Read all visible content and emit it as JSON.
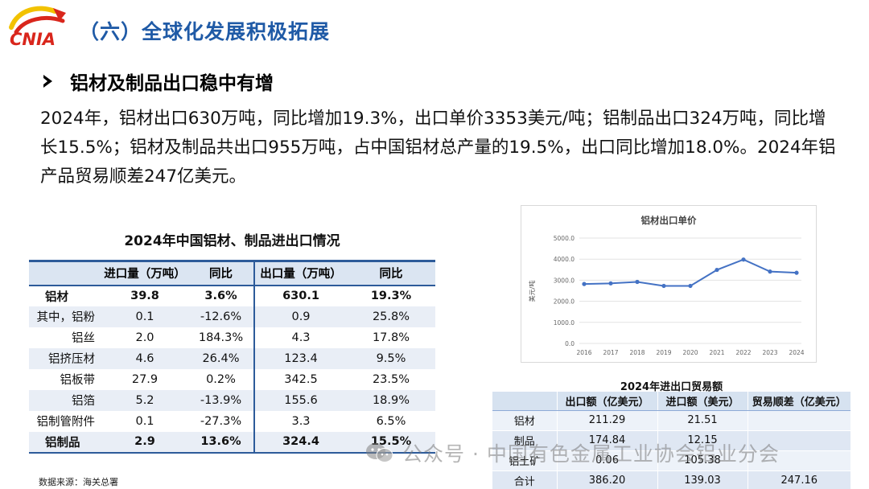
{
  "header": {
    "logo_text": "CNIA",
    "title": "（六）全球化发展积极拓展"
  },
  "section": {
    "subheading": "铝材及制品出口稳中有增",
    "paragraph": "2024年，铝材出口630万吨，同比增加19.3%，出口单价3353美元/吨；铝制品出口324万吨，同比增长15.5%；铝材及制品共出口955万吨，占中国铝材总产量的19.5%，出口同比增加18.0%。2024年铝产品贸易顺差247亿美元。"
  },
  "trade_table": {
    "title": "2024年中国铝材、制品进出口情况",
    "headers": [
      "",
      "进口量（万吨）",
      "同比",
      "出口量（万吨）",
      "同比"
    ],
    "rows": [
      {
        "name": "铝材",
        "import": "39.8",
        "import_yoy": "3.6%",
        "export": "630.1",
        "export_yoy": "19.3%"
      },
      {
        "name": "其中，铝粉",
        "import": "0.1",
        "import_yoy": "-12.6%",
        "export": "0.9",
        "export_yoy": "25.8%"
      },
      {
        "name": "铝丝",
        "import": "2.0",
        "import_yoy": "184.3%",
        "export": "4.3",
        "export_yoy": "17.8%"
      },
      {
        "name": "铝挤压材",
        "import": "4.6",
        "import_yoy": "26.4%",
        "export": "123.4",
        "export_yoy": "9.5%"
      },
      {
        "name": "铝板带",
        "import": "27.9",
        "import_yoy": "0.2%",
        "export": "342.5",
        "export_yoy": "23.5%"
      },
      {
        "name": "铝箔",
        "import": "5.2",
        "import_yoy": "-13.9%",
        "export": "155.6",
        "export_yoy": "18.9%"
      },
      {
        "name": "铝制管附件",
        "import": "0.1",
        "import_yoy": "-27.3%",
        "export": "3.3",
        "export_yoy": "6.5%"
      },
      {
        "name": "铝制品",
        "import": "2.9",
        "import_yoy": "13.6%",
        "export": "324.4",
        "export_yoy": "15.5%"
      }
    ],
    "source": "数据来源：海关总署"
  },
  "chart_data": {
    "type": "line",
    "title": "铝材出口单价",
    "ylabel": "美元/吨",
    "xlabel": "",
    "x": [
      "2016",
      "2017",
      "2018",
      "2019",
      "2020",
      "2021",
      "2022",
      "2023",
      "2024"
    ],
    "series": [
      {
        "values": [
          2820,
          2850,
          2920,
          2730,
          2730,
          3490,
          3980,
          3410,
          3353
        ]
      }
    ],
    "ylim": [
      0,
      5000
    ],
    "yticks": [
      "0.0",
      "1000.0",
      "2000.0",
      "3000.0",
      "4000.0",
      "5000.0"
    ],
    "grid": true,
    "legend": "none",
    "line_color": "#4472c4"
  },
  "balance_table": {
    "title": "2024年进出口贸易额",
    "headers": [
      "",
      "出口额（亿美元）",
      "进口额（美元）",
      "贸易顺差（亿美元）"
    ],
    "rows": [
      {
        "name": "铝材",
        "export": "211.29",
        "import": "21.51",
        "surplus": ""
      },
      {
        "name": "制品",
        "export": "174.84",
        "import": "12.15",
        "surplus": ""
      },
      {
        "name": "铝土矿",
        "export": "0.06",
        "import": "105.38",
        "surplus": ""
      },
      {
        "name": "合计",
        "export": "386.20",
        "import": "139.03",
        "surplus": "247.16"
      }
    ]
  },
  "watermark": {
    "text": "公众号 · 中国有色金属工业协会铝业分会"
  }
}
